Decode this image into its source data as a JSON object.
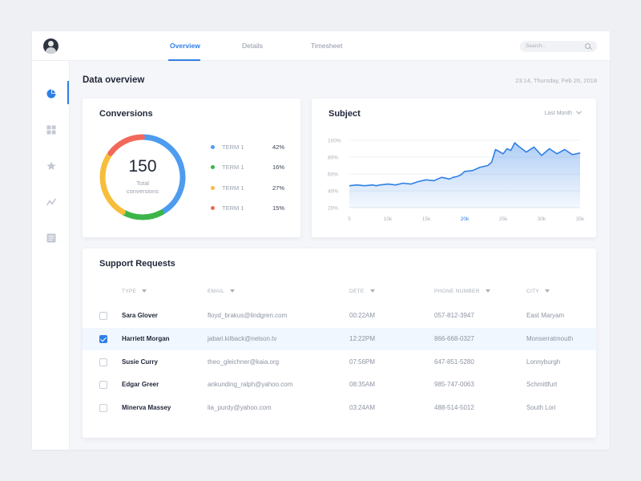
{
  "header": {
    "tabs": [
      {
        "label": "Overview",
        "active": true
      },
      {
        "label": "Details",
        "active": false
      },
      {
        "label": "Timesheet",
        "active": false
      }
    ],
    "search_placeholder": "Search..",
    "avatar_icon": "user-avatar"
  },
  "sidebar": {
    "items": [
      {
        "icon": "pie-chart-icon",
        "active": true
      },
      {
        "icon": "grid-icon",
        "active": false
      },
      {
        "icon": "star-icon",
        "active": false
      },
      {
        "icon": "trend-icon",
        "active": false
      },
      {
        "icon": "document-icon",
        "active": false
      }
    ]
  },
  "main": {
    "title": "Data overview",
    "datetime": "23:14, Thursday, Feb 26, 2018"
  },
  "conversions": {
    "title": "Conversions",
    "total": "150",
    "total_label_1": "Total",
    "total_label_2": "conversions",
    "legend": [
      {
        "name": "TERM 1",
        "value": "42%",
        "color": "#4d9cf0"
      },
      {
        "name": "TERM 1",
        "value": "16%",
        "color": "#3bb54a"
      },
      {
        "name": "TERM 1",
        "value": "27%",
        "color": "#f7be3c"
      },
      {
        "name": "TERM 1",
        "value": "15%",
        "color": "#f2685a"
      }
    ]
  },
  "subject": {
    "title": "Subject",
    "range_label": "Last Month"
  },
  "chart_data": {
    "type": "area",
    "title": "Subject",
    "x_ticks": [
      "5",
      "10k",
      "15k",
      "20k",
      "25k",
      "30k",
      "35k"
    ],
    "highlighted_x_tick": "20k",
    "y_ticks": [
      "100%",
      "80%",
      "60%",
      "40%",
      "20%"
    ],
    "ylim": [
      20,
      100
    ],
    "xlim": [
      5,
      35
    ],
    "grid": true,
    "color": "#2f7fe6",
    "series": [
      {
        "x": [
          5,
          6,
          7,
          8,
          8.5,
          9,
          10,
          11,
          12,
          13,
          14,
          15,
          16,
          17,
          18,
          18.5,
          19,
          19.5,
          20,
          21,
          22,
          23,
          23.5,
          24,
          25,
          25.5,
          26,
          26.5,
          27,
          28,
          29,
          30,
          31,
          32,
          33,
          34,
          35
        ],
        "values": [
          46,
          47,
          46,
          47,
          46,
          47,
          48,
          47,
          49,
          48,
          51,
          53,
          52,
          56,
          54,
          56,
          57,
          59,
          63,
          64,
          68,
          70,
          74,
          89,
          84,
          90,
          88,
          97,
          93,
          86,
          92,
          82,
          90,
          84,
          89,
          83,
          85
        ]
      }
    ]
  },
  "support": {
    "title": "Support Requests",
    "columns": [
      {
        "label": "TYPE"
      },
      {
        "label": "EMAIL"
      },
      {
        "label": "DETE"
      },
      {
        "label": "PHONE NUMBER"
      },
      {
        "label": "CITY"
      }
    ],
    "rows": [
      {
        "name": "Sara Glover",
        "email": "floyd_brakus@lindgren.com",
        "time": "00:22AM",
        "phone": "057-812-3947",
        "city": "East Maryam",
        "checked": false
      },
      {
        "name": "Harriett Morgan",
        "email": "jabari.kilback@nelson.tv",
        "time": "12:22PM",
        "phone": "866-668-0327",
        "city": "Monserratmouth",
        "checked": true
      },
      {
        "name": "Susie Curry",
        "email": "theo_gleichner@kaia.org",
        "time": "07:56PM",
        "phone": "647-851-5280",
        "city": "Lonnyburgh",
        "checked": false
      },
      {
        "name": "Edgar Greer",
        "email": "ankunding_ralph@yahoo.com",
        "time": "08:35AM",
        "phone": "985-747-0063",
        "city": "Schmittfurt",
        "checked": false
      },
      {
        "name": "Minerva Massey",
        "email": "lia_purdy@yahoo.com",
        "time": "03:24AM",
        "phone": "488-514-5012",
        "city": "South Lori",
        "checked": false
      }
    ]
  }
}
